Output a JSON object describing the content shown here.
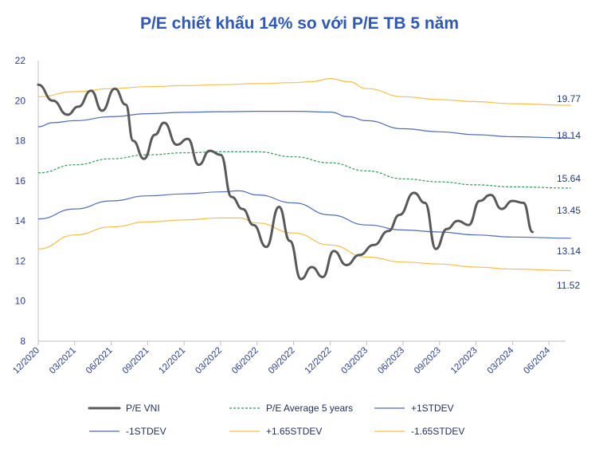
{
  "chart_data": {
    "type": "line",
    "title": "P/E chiết khấu 14% so với P/E TB 5 năm",
    "xlabel": "",
    "ylabel": "",
    "ylim": [
      8,
      22
    ],
    "yticks": [
      "22",
      "20",
      "18",
      "16",
      "14",
      "12",
      "10",
      "8"
    ],
    "grid": false,
    "legend_position": "bottom",
    "x_tick_labels": [
      "12/2020",
      "03/2021",
      "06/2021",
      "09/2021",
      "12/2021",
      "03/2022",
      "06/2022",
      "09/2022",
      "12/2022",
      "03/2023",
      "06/2023",
      "09/2023",
      "12/2023",
      "03/2024",
      "06/2024"
    ],
    "x_range": [
      0,
      14.6
    ],
    "series": [
      {
        "name": "P/E VNI",
        "color": "#595959",
        "style": "solid-thick",
        "end_label": "13.45",
        "points": [
          [
            0,
            20.8
          ],
          [
            0.4,
            20
          ],
          [
            0.8,
            19.3
          ],
          [
            1.1,
            19.7
          ],
          [
            1.45,
            20.5
          ],
          [
            1.75,
            19.5
          ],
          [
            2.1,
            20.6
          ],
          [
            2.4,
            19.8
          ],
          [
            2.6,
            18
          ],
          [
            2.9,
            17.1
          ],
          [
            3.2,
            18.3
          ],
          [
            3.45,
            18.9
          ],
          [
            3.8,
            17.8
          ],
          [
            4.1,
            18.1
          ],
          [
            4.4,
            16.8
          ],
          [
            4.7,
            17.5
          ],
          [
            5.0,
            17.3
          ],
          [
            5.3,
            15.2
          ],
          [
            5.6,
            14.6
          ],
          [
            5.9,
            13.8
          ],
          [
            6.25,
            12.7
          ],
          [
            6.6,
            14.7
          ],
          [
            6.9,
            13
          ],
          [
            7.2,
            11.1
          ],
          [
            7.5,
            11.7
          ],
          [
            7.8,
            11.2
          ],
          [
            8.1,
            12.5
          ],
          [
            8.45,
            11.8
          ],
          [
            8.8,
            12.3
          ],
          [
            9.2,
            12.8
          ],
          [
            9.6,
            13.5
          ],
          [
            9.9,
            14.3
          ],
          [
            10.3,
            15.4
          ],
          [
            10.6,
            14.9
          ],
          [
            10.9,
            12.6
          ],
          [
            11.2,
            13.6
          ],
          [
            11.5,
            14
          ],
          [
            11.8,
            13.8
          ],
          [
            12.1,
            15
          ],
          [
            12.4,
            15.3
          ],
          [
            12.7,
            14.6
          ],
          [
            13.0,
            15
          ],
          [
            13.3,
            14.9
          ],
          [
            13.55,
            13.45
          ]
        ]
      },
      {
        "name": "P/E Average 5 years",
        "color": "#2f9a55",
        "style": "dotted",
        "end_label": "15.64",
        "points": [
          [
            0,
            16.4
          ],
          [
            1,
            16.8
          ],
          [
            2,
            17.1
          ],
          [
            3,
            17.3
          ],
          [
            4,
            17.4
          ],
          [
            5,
            17.45
          ],
          [
            6,
            17.45
          ],
          [
            7,
            17.2
          ],
          [
            8,
            16.9
          ],
          [
            9,
            16.5
          ],
          [
            10,
            16.1
          ],
          [
            11,
            15.95
          ],
          [
            12,
            15.8
          ],
          [
            13,
            15.7
          ],
          [
            14.6,
            15.64
          ]
        ]
      },
      {
        "name": "+1STDEV",
        "color": "#4f6bb5",
        "style": "solid",
        "end_label": "18.14",
        "points": [
          [
            0,
            18.7
          ],
          [
            0.4,
            18.9
          ],
          [
            1,
            19.0
          ],
          [
            2,
            19.2
          ],
          [
            3,
            19.35
          ],
          [
            4,
            19.42
          ],
          [
            5,
            19.45
          ],
          [
            6,
            19.47
          ],
          [
            7,
            19.47
          ],
          [
            8,
            19.43
          ],
          [
            8.5,
            19.2
          ],
          [
            9,
            19.0
          ],
          [
            10,
            18.6
          ],
          [
            11,
            18.45
          ],
          [
            12,
            18.3
          ],
          [
            13,
            18.2
          ],
          [
            14.6,
            18.14
          ]
        ]
      },
      {
        "name": "-1STDEV",
        "color": "#4f6bb5",
        "style": "solid",
        "end_label": "13.14",
        "points": [
          [
            0,
            14.1
          ],
          [
            1,
            14.6
          ],
          [
            2,
            15.0
          ],
          [
            3,
            15.25
          ],
          [
            4,
            15.35
          ],
          [
            5,
            15.45
          ],
          [
            5.5,
            15.5
          ],
          [
            6,
            15.3
          ],
          [
            7,
            14.9
          ],
          [
            8,
            14.3
          ],
          [
            9,
            13.8
          ],
          [
            10,
            13.55
          ],
          [
            11,
            13.45
          ],
          [
            12,
            13.3
          ],
          [
            13,
            13.2
          ],
          [
            14.6,
            13.14
          ]
        ]
      },
      {
        "name": "+1.65STDEV",
        "color": "#f5c04a",
        "style": "solid",
        "end_label": "19.77",
        "points": [
          [
            0,
            20.2
          ],
          [
            1,
            20.45
          ],
          [
            2,
            20.6
          ],
          [
            3,
            20.7
          ],
          [
            4,
            20.75
          ],
          [
            5,
            20.8
          ],
          [
            6,
            20.85
          ],
          [
            7,
            20.9
          ],
          [
            7.5,
            20.95
          ],
          [
            8,
            21.1
          ],
          [
            8.5,
            20.95
          ],
          [
            9,
            20.6
          ],
          [
            10,
            20.2
          ],
          [
            11,
            20.05
          ],
          [
            12,
            19.95
          ],
          [
            13,
            19.85
          ],
          [
            14.6,
            19.77
          ]
        ]
      },
      {
        "name": "-1.65STDEV",
        "color": "#f5c04a",
        "style": "solid",
        "end_label": "11.52",
        "points": [
          [
            0,
            12.6
          ],
          [
            1,
            13.3
          ],
          [
            2,
            13.7
          ],
          [
            3,
            13.95
          ],
          [
            4,
            14.05
          ],
          [
            5,
            14.15
          ],
          [
            5.5,
            14.15
          ],
          [
            6,
            13.9
          ],
          [
            7,
            13.4
          ],
          [
            8,
            12.8
          ],
          [
            9,
            12.2
          ],
          [
            10,
            11.95
          ],
          [
            11,
            11.85
          ],
          [
            12,
            11.7
          ],
          [
            13,
            11.6
          ],
          [
            14.6,
            11.52
          ]
        ]
      }
    ]
  }
}
